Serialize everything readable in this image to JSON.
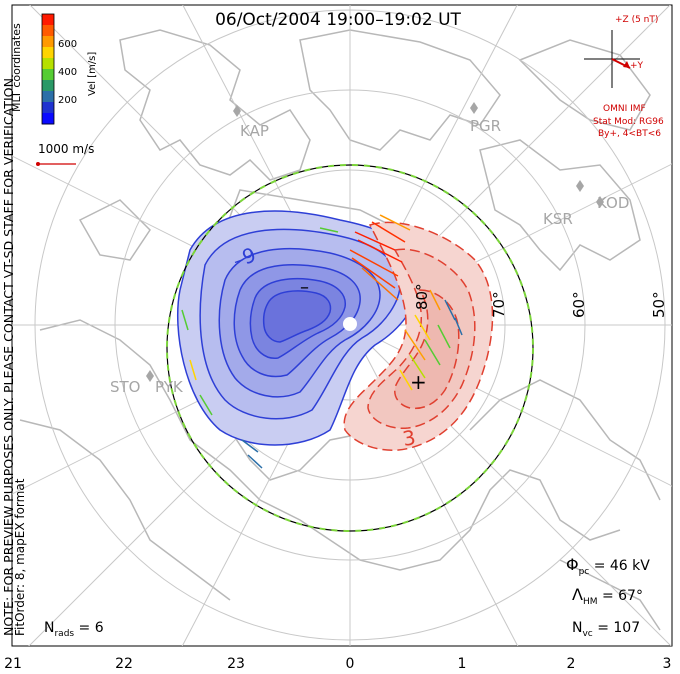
{
  "title": "06/Oct/2004 19:00–19:02 UT",
  "colorbar": {
    "unit_label": "Vel [m/s]",
    "ticks": [
      "600",
      "400",
      "200"
    ],
    "colors": [
      "#ff1a00",
      "#ff5a00",
      "#ff9900",
      "#ffd400",
      "#b6e000",
      "#55cc33",
      "#2a9966",
      "#2b6fa8",
      "#1f33d0",
      "#0a0aff"
    ]
  },
  "coordinates_label": "MLT coordinates",
  "velocity_scale_label": "1000 m/s",
  "imf": {
    "z_label": "+Z (5 nT)",
    "y_label": "+Y",
    "source_label": "OMNI IMF",
    "model_line1": "Stat Mod: RG96",
    "model_line2": "By+, 4<BT<6"
  },
  "stations": [
    "KAP",
    "PGR",
    "KSR",
    "KOD",
    "STO",
    "PYK"
  ],
  "latitude_labels": [
    "80°",
    "70°",
    "60°",
    "50°"
  ],
  "contour_labels": [
    "–9",
    "3"
  ],
  "markers": {
    "min": "–",
    "max": "+"
  },
  "stats": {
    "phi_symbol": "Φ",
    "phi_sub": "pc",
    "phi_value": " = 46 kV",
    "lambda_symbol": "Λ",
    "lambda_sub": "HM",
    "lambda_value": " = 67°",
    "nvc_symbol": "N",
    "nvc_sub": "vc",
    "nvc_value": " = 107",
    "nrads_symbol": "N",
    "nrads_sub": "rads",
    "nrads_value": " = 6"
  },
  "note_line1": "NOTE: FOR PREVIEW PURPOSES ONLY. PLEASE CONTACT VT-SD STAFF FOR VERIFICATION.",
  "note_line2": "FitOrder: 8, mapEX format",
  "mlt_ticks": [
    "21",
    "22",
    "23",
    "0",
    "1",
    "2",
    "3"
  ],
  "map_colors": {
    "negative_cell": "#2e3fd6",
    "positive_cell": "#e04030",
    "grid": "#c8c8c8",
    "coastline": "#b8b8b8",
    "heppner_boundary": "#7bd43a"
  }
}
